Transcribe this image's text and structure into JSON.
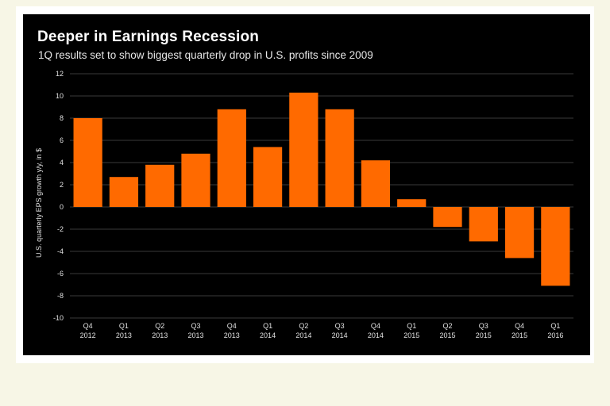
{
  "chart_data": {
    "type": "bar",
    "title": "Deeper in Earnings Recession",
    "subtitle": "1Q results set to show biggest quarterly drop in U.S. profits since 2009",
    "xlabel": "",
    "ylabel": "U.S. quarterly EPS growth y/y, in $",
    "ylim": [
      -10,
      12
    ],
    "yticks": [
      12,
      10,
      8,
      6,
      4,
      2,
      0,
      -2,
      -4,
      -6,
      -8,
      -10
    ],
    "grid": true,
    "categories": [
      {
        "q": "Q4",
        "y": "2012"
      },
      {
        "q": "Q1",
        "y": "2013"
      },
      {
        "q": "Q2",
        "y": "2013"
      },
      {
        "q": "Q3",
        "y": "2013"
      },
      {
        "q": "Q4",
        "y": "2013"
      },
      {
        "q": "Q1",
        "y": "2014"
      },
      {
        "q": "Q2",
        "y": "2014"
      },
      {
        "q": "Q3",
        "y": "2014"
      },
      {
        "q": "Q4",
        "y": "2014"
      },
      {
        "q": "Q1",
        "y": "2015"
      },
      {
        "q": "Q2",
        "y": "2015"
      },
      {
        "q": "Q3",
        "y": "2015"
      },
      {
        "q": "Q4",
        "y": "2015"
      },
      {
        "q": "Q1",
        "y": "2016"
      }
    ],
    "values": [
      8.0,
      2.7,
      3.8,
      4.8,
      8.8,
      5.4,
      10.3,
      8.8,
      4.2,
      0.7,
      -1.8,
      -3.1,
      -4.6,
      -7.1
    ],
    "bar_color": "#ff6a00",
    "background_color": "#000000",
    "grid_color": "#3a3a3a"
  }
}
